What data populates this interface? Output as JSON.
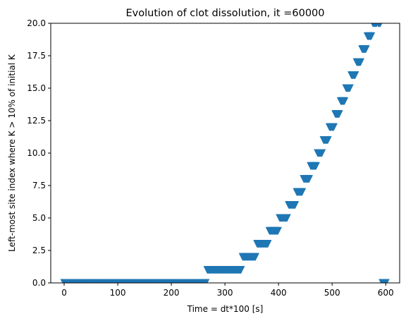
{
  "chart_data": {
    "type": "scatter",
    "title": "Evolution of clot dissolution, it =60000",
    "xlabel": "Time = dt*100 [s]",
    "ylabel": "Left-most site index where K > 10% of initial K",
    "xlim": [
      -25,
      626
    ],
    "ylim": [
      0,
      20
    ],
    "xticks": [
      0,
      100,
      200,
      300,
      400,
      500,
      600
    ],
    "yticks": [
      0.0,
      2.5,
      5.0,
      7.5,
      10.0,
      12.5,
      15.0,
      17.5,
      20.0
    ],
    "xtick_labels": [
      "0",
      "100",
      "200",
      "300",
      "400",
      "500",
      "600"
    ],
    "ytick_labels": [
      "0.0",
      "2.5",
      "5.0",
      "7.5",
      "10.0",
      "12.5",
      "15.0",
      "17.5",
      "20.0"
    ],
    "grid": false,
    "marker": "triangle-down",
    "color": "#1f77b4",
    "segments": [
      {
        "y": 0,
        "x_start": 0,
        "x_end": 264
      },
      {
        "y": 1,
        "x_start": 267,
        "x_end": 330
      },
      {
        "y": 2,
        "x_start": 333,
        "x_end": 357
      },
      {
        "y": 3,
        "x_start": 360,
        "x_end": 380
      },
      {
        "y": 4,
        "x_start": 383,
        "x_end": 399
      },
      {
        "y": 5,
        "x_start": 402,
        "x_end": 416
      },
      {
        "y": 6,
        "x_start": 419,
        "x_end": 431
      },
      {
        "y": 7,
        "x_start": 434,
        "x_end": 444
      },
      {
        "y": 8,
        "x_start": 447,
        "x_end": 457
      },
      {
        "y": 9,
        "x_start": 460,
        "x_end": 470
      },
      {
        "y": 10,
        "x_start": 473,
        "x_end": 481
      },
      {
        "y": 11,
        "x_start": 484,
        "x_end": 492
      },
      {
        "y": 12,
        "x_start": 495,
        "x_end": 503
      },
      {
        "y": 13,
        "x_start": 506,
        "x_end": 513
      },
      {
        "y": 14,
        "x_start": 516,
        "x_end": 523
      },
      {
        "y": 15,
        "x_start": 526,
        "x_end": 533
      },
      {
        "y": 16,
        "x_start": 536,
        "x_end": 543
      },
      {
        "y": 17,
        "x_start": 546,
        "x_end": 553
      },
      {
        "y": 18,
        "x_start": 556,
        "x_end": 563
      },
      {
        "y": 19,
        "x_start": 566,
        "x_end": 573
      },
      {
        "y": 20,
        "x_start": 576,
        "x_end": 583
      },
      {
        "y": 20,
        "x_start": 586,
        "x_end": 590
      },
      {
        "y": 0,
        "x_start": 594,
        "x_end": 600
      }
    ],
    "step": 1
  }
}
